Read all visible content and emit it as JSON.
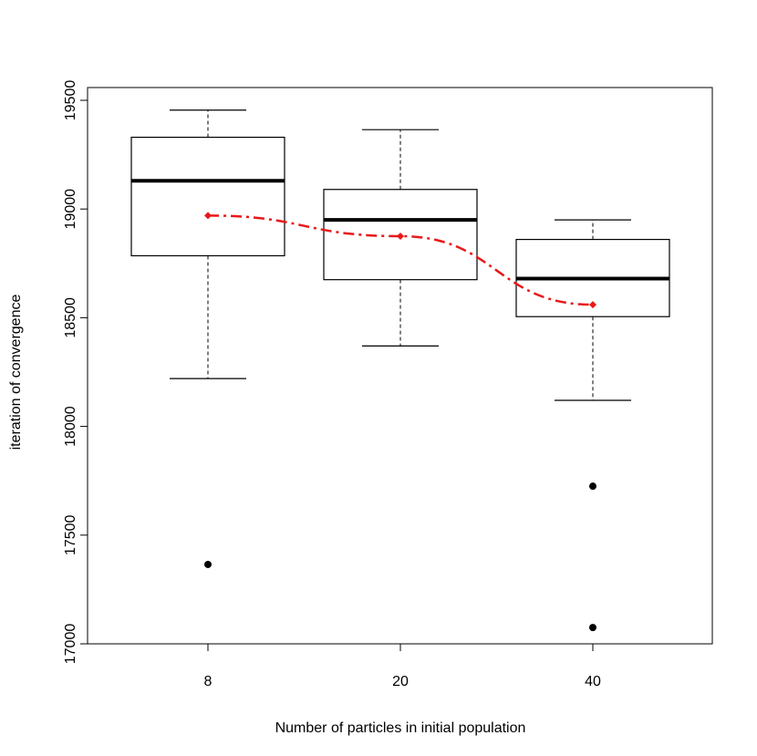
{
  "chart_data": {
    "type": "boxplot",
    "xlabel": "Number of particles in initial population",
    "ylabel": "iteration of convergence",
    "categories": [
      "8",
      "20",
      "40"
    ],
    "ylim": [
      17000,
      19500
    ],
    "yticks": [
      17000,
      17500,
      18000,
      18500,
      19000,
      19500
    ],
    "grid": false,
    "legend": "none",
    "boxes": [
      {
        "category": "8",
        "whisker_low": 18220,
        "q1": 18785,
        "median": 19130,
        "q3": 19330,
        "whisker_high": 19455,
        "outliers": [
          17365
        ]
      },
      {
        "category": "20",
        "whisker_low": 18370,
        "q1": 18675,
        "median": 18950,
        "q3": 19090,
        "whisker_high": 19365,
        "outliers": []
      },
      {
        "category": "40",
        "whisker_low": 18120,
        "q1": 18505,
        "median": 18680,
        "q3": 18860,
        "whisker_high": 18950,
        "outliers": [
          17725,
          17075
        ]
      }
    ],
    "mean_line": {
      "color": "#e8191a",
      "style": "dash-dot",
      "values": [
        18970,
        18875,
        18560
      ]
    }
  }
}
